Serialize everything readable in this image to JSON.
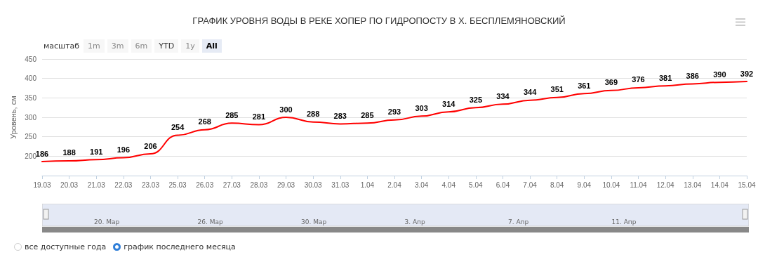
{
  "chart_data": {
    "type": "line",
    "title": "ГРАФИК УРОВНЯ ВОДЫ В РЕКЕ ХОПЕР ПО ГИДРОПОСТУ В Х. БЕСПЛЕМЯНОВСКИЙ",
    "ylabel": "Уровень, см",
    "categories": [
      "19.03",
      "20.03",
      "21.03",
      "22.03",
      "23.03",
      "25.03",
      "26.03",
      "27.03",
      "28.03",
      "29.03",
      "30.03",
      "31.03",
      "1.04",
      "2.04",
      "3.04",
      "4.04",
      "5.04",
      "6.04",
      "7.04",
      "8.04",
      "9.04",
      "10.04",
      "11.04",
      "12.04",
      "13.04",
      "14.04",
      "15.04"
    ],
    "series": [
      {
        "color": "#ff0000",
        "values": [
          186,
          188,
          191,
          196,
          206,
          254,
          268,
          285,
          281,
          300,
          288,
          283,
          285,
          293,
          303,
          314,
          325,
          334,
          344,
          351,
          361,
          369,
          376,
          381,
          386,
          390,
          392
        ]
      }
    ],
    "ylim": [
      150,
      450
    ],
    "yticks": [
      200,
      250,
      300,
      350,
      400,
      450
    ],
    "grid": "y",
    "marker": "none",
    "line_style": "solid",
    "data_labels": true,
    "annotations": [
      "масштаб",
      "1m",
      "3m",
      "6m",
      "YTD",
      "1y",
      "All",
      "20. Мар",
      "26. Мар",
      "30. Мар",
      "3. Апр",
      "7. Апр",
      "11. Апр",
      "все доступные года",
      "график последнего месяца"
    ]
  }
}
